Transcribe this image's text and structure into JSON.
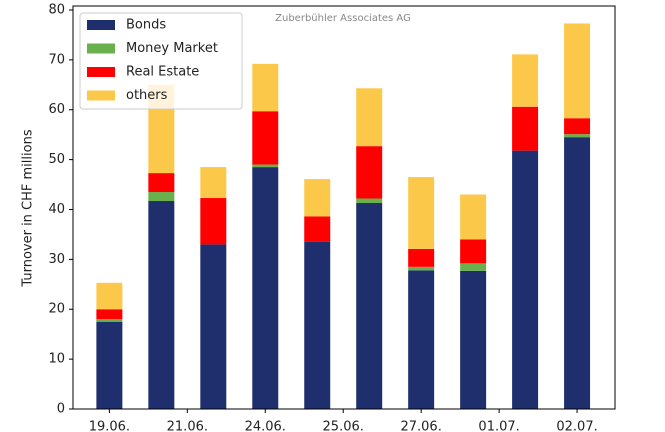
{
  "chart_data": {
    "type": "stacked_bar",
    "watermark": "Zuberbühler Associates AG",
    "ylabel": "Turnover in CHF millions",
    "categories": [
      null,
      null,
      null,
      null,
      null,
      null,
      null,
      null,
      null,
      null
    ],
    "series": [
      {
        "name": "Bonds",
        "color": "#1f2f6e",
        "values": [
          17.5,
          41.7,
          33,
          48.5,
          33.5,
          41.3,
          27.8,
          27.7,
          51.8,
          54.5
        ]
      },
      {
        "name": "Money Market",
        "color": "#6ab04c",
        "values": [
          0.5,
          1.8,
          0,
          0.5,
          0,
          0.9,
          0.7,
          1.5,
          0,
          0.6
        ]
      },
      {
        "name": "Real Estate",
        "color": "#ff0000",
        "values": [
          2,
          3.8,
          9.3,
          10.7,
          5.1,
          10.5,
          3.6,
          4.8,
          8.8,
          3.2
        ]
      },
      {
        "name": "others",
        "color": "#fcc84a",
        "values": [
          5.3,
          17.7,
          6.2,
          9.5,
          7.5,
          11.6,
          14.4,
          9,
          10.5,
          19
        ]
      }
    ],
    "xlim": [
      -0.7,
      9.73
    ],
    "xticks": [
      {
        "value": 0,
        "label": "19.06."
      },
      {
        "value": 1.5,
        "label": "21.06."
      },
      {
        "value": 3,
        "label": "24.06."
      },
      {
        "value": 4.5,
        "label": "25.06."
      },
      {
        "value": 6,
        "label": "27.06."
      },
      {
        "value": 7.5,
        "label": "01.07."
      },
      {
        "value": 9,
        "label": "02.07."
      }
    ],
    "ylim": [
      0,
      80.8
    ],
    "yticks": [
      0,
      10,
      20,
      30,
      40,
      50,
      60,
      70,
      80
    ],
    "legend": "upper left"
  }
}
